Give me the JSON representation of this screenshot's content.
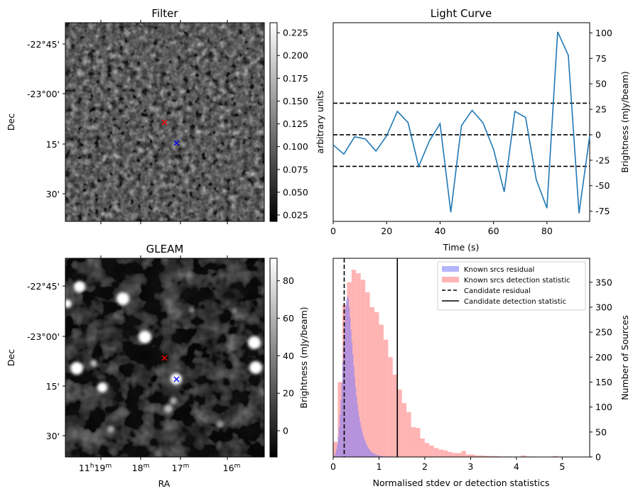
{
  "chart_data": [
    {
      "id": "filter",
      "type": "heatmap",
      "title": "Filter",
      "ylabel": "Dec",
      "yticks": [
        "-22°45'",
        "-23°00'",
        "15'",
        "30'"
      ],
      "colorbar": {
        "label": "arbitrary units",
        "range": [
          0.018,
          0.236
        ],
        "ticks": [
          "0.225",
          "0.200",
          "0.175",
          "0.150",
          "0.125",
          "0.100",
          "0.075",
          "0.050",
          "0.025"
        ],
        "tick_values": [
          0.225,
          0.2,
          0.175,
          0.15,
          0.125,
          0.1,
          0.075,
          0.05,
          0.025
        ]
      },
      "markers": [
        {
          "label": "candidate",
          "color": "#ff0000",
          "symbol": "x"
        },
        {
          "label": "reference",
          "color": "#0000ff",
          "symbol": "x"
        }
      ]
    },
    {
      "id": "lightcurve",
      "type": "line",
      "title": "Light Curve",
      "xlabel": "Time (s)",
      "ylabel": "Brightness (mJy/beam)",
      "xlim": [
        0,
        96
      ],
      "ylim": [
        -85,
        110
      ],
      "xticks": [
        0,
        20,
        40,
        60,
        80
      ],
      "yticks": [
        100,
        75,
        50,
        25,
        0,
        -25,
        -50,
        -75
      ],
      "x": [
        0,
        4,
        8,
        12,
        16,
        20,
        24,
        28,
        32,
        36,
        40,
        44,
        48,
        52,
        56,
        60,
        64,
        68,
        72,
        76,
        80,
        84,
        88,
        92,
        96
      ],
      "y": [
        -10,
        -19,
        -2,
        -4,
        -16,
        -1,
        23,
        12,
        -31,
        -6,
        11,
        -76,
        9,
        24,
        12,
        -14,
        -56,
        23,
        17,
        -44,
        -72,
        101,
        78,
        -77,
        -1
      ],
      "hlines": [
        31,
        0,
        -31
      ],
      "color": "#1f77b4"
    },
    {
      "id": "gleam",
      "type": "heatmap",
      "title": "GLEAM",
      "xlabel": "RA",
      "ylabel": "Dec",
      "xticks": [
        "11h19m",
        "18m",
        "17m",
        "16m"
      ],
      "yticks": [
        "-22°45'",
        "-23°00'",
        "15'",
        "30'"
      ],
      "colorbar": {
        "label": "Brightness (mJy/beam)",
        "range": [
          -14,
          92
        ],
        "ticks": [
          "80",
          "60",
          "40",
          "20",
          "0"
        ],
        "tick_values": [
          80,
          60,
          40,
          20,
          0
        ]
      },
      "markers": [
        {
          "label": "candidate",
          "color": "#ff0000",
          "symbol": "x"
        },
        {
          "label": "reference",
          "color": "#0000ff",
          "symbol": "x"
        }
      ]
    },
    {
      "id": "histogram",
      "type": "bar",
      "xlabel": "Normalised stdev or detection statistics",
      "ylabel": "Number of Sources",
      "xlim": [
        0,
        5.6
      ],
      "ylim": [
        0,
        398
      ],
      "xticks": [
        0,
        1,
        2,
        3,
        4,
        5
      ],
      "yticks": [
        0,
        50,
        100,
        150,
        200,
        250,
        300,
        350
      ],
      "series": [
        {
          "name": "Known srcs residual",
          "color": "#7777ff",
          "bin_width": 0.02,
          "start": 0.0,
          "values": [
            0,
            3,
            8,
            15,
            25,
            40,
            60,
            85,
            115,
            150,
            190,
            230,
            270,
            300,
            315,
            322,
            318,
            300,
            280,
            255,
            230,
            205,
            182,
            160,
            140,
            122,
            106,
            92,
            80,
            70,
            60,
            52,
            45,
            39,
            34,
            29,
            25,
            21,
            18,
            15,
            13,
            11,
            9,
            8,
            7,
            6,
            5,
            4,
            4,
            3,
            3,
            2,
            2,
            2,
            1,
            1,
            1,
            1,
            1,
            1
          ]
        },
        {
          "name": "Known srcs detection statistic",
          "color": "#ff7777",
          "bin_width": 0.1,
          "start": 0.0,
          "values": [
            30,
            150,
            305,
            350,
            375,
            368,
            355,
            330,
            300,
            290,
            265,
            235,
            200,
            165,
            135,
            108,
            90,
            60,
            58,
            37,
            28,
            23,
            18,
            15,
            13,
            10,
            8,
            8,
            12,
            5,
            5,
            3,
            3,
            2,
            2,
            2,
            1,
            1,
            1,
            0,
            0,
            3,
            1,
            0,
            0,
            0,
            0,
            0,
            2,
            0,
            0,
            0,
            0,
            0,
            0,
            0
          ]
        }
      ],
      "vlines": [
        {
          "name": "Candidate residual",
          "x": 0.24,
          "style": "dashed"
        },
        {
          "name": "Candidate detection statistic",
          "x": 1.4,
          "style": "solid"
        }
      ],
      "legend_position": "top-right"
    }
  ]
}
